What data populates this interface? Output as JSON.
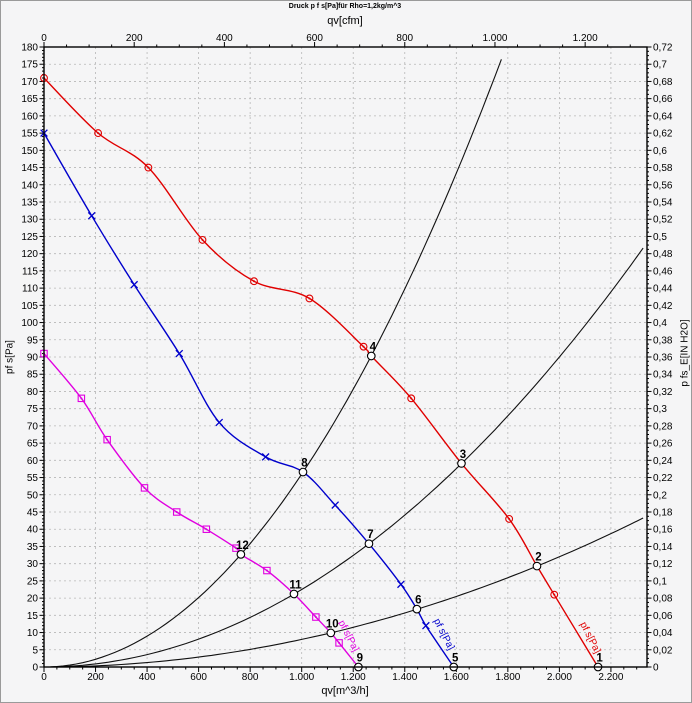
{
  "page_title": "Druck p f s[Pa]für Rho=1,2kg/m^3",
  "chart_data": {
    "type": "line",
    "title": "Druck p f s[Pa]für Rho=1,2kg/m^3",
    "number_format": "de",
    "axes": {
      "bottom": {
        "label": "qv[m^3/h]",
        "min": 0,
        "max": 2340,
        "tick_step": 200,
        "minor_step": 50,
        "last_label": 2200
      },
      "top": {
        "label": "qv[cfm]",
        "min": 0,
        "max": 1337,
        "tick_step": 200,
        "minor_step": 50,
        "last_label": 1200,
        "unit_ratio_to_bottom": 1.75
      },
      "left": {
        "label": "pf s[Pa]",
        "min": 0,
        "max": 180,
        "tick_step": 5,
        "minor_step": 1
      },
      "right": {
        "label": "p fs_E[IN H2O]",
        "min": 0,
        "max": 0.72,
        "tick_step": 0.02,
        "minor_step": 0.005
      }
    },
    "grid": {
      "x_step": 200,
      "y_step": 5,
      "color": "#b7b7b7",
      "dash": "2 3"
    },
    "series": [
      {
        "name": "fan-curve-high",
        "color": "#e00000",
        "marker": "circle-dot",
        "curve_label": {
          "text": "pf s[Pa]",
          "qv": 2080,
          "pa": 12.5,
          "rotate": 63
        },
        "points": [
          [
            0,
            171
          ],
          [
            210,
            155
          ],
          [
            405,
            145
          ],
          [
            615,
            124
          ],
          [
            815,
            112
          ],
          [
            1030,
            107
          ],
          [
            1240,
            93
          ],
          [
            1270,
            90.3
          ],
          [
            1425,
            78
          ],
          [
            1620,
            59.1
          ],
          [
            1805,
            43
          ],
          [
            1913,
            29.3
          ],
          [
            1980,
            21
          ],
          [
            2150,
            0
          ]
        ],
        "markers": [
          [
            0,
            171
          ],
          [
            210,
            155
          ],
          [
            405,
            145
          ],
          [
            615,
            124
          ],
          [
            815,
            112
          ],
          [
            1030,
            107
          ],
          [
            1240,
            93
          ],
          [
            1425,
            78
          ],
          [
            1805,
            43
          ],
          [
            1980,
            21
          ]
        ]
      },
      {
        "name": "fan-curve-mid",
        "color": "#0000cc",
        "marker": "cross",
        "curve_label": {
          "text": "pf s[Pa]",
          "qv": 1512,
          "pa": 13.5,
          "rotate": 63
        },
        "points": [
          [
            0,
            155
          ],
          [
            185,
            131
          ],
          [
            350,
            111
          ],
          [
            525,
            91
          ],
          [
            680,
            71
          ],
          [
            860,
            61
          ],
          [
            1005,
            56.6
          ],
          [
            1130,
            47
          ],
          [
            1261,
            35.8
          ],
          [
            1385,
            24
          ],
          [
            1447,
            16.8
          ],
          [
            1482,
            12
          ],
          [
            1590,
            0
          ]
        ],
        "markers": [
          [
            0,
            155
          ],
          [
            185,
            131
          ],
          [
            350,
            111
          ],
          [
            525,
            91
          ],
          [
            680,
            71
          ],
          [
            860,
            61
          ],
          [
            1130,
            47
          ],
          [
            1385,
            24
          ],
          [
            1482,
            12
          ]
        ]
      },
      {
        "name": "fan-curve-low",
        "color": "#e000e0",
        "marker": "square-dot",
        "curve_label": {
          "text": "pf s[Pa]",
          "qv": 1142,
          "pa": 13,
          "rotate": 63
        },
        "points": [
          [
            0,
            91
          ],
          [
            145,
            78
          ],
          [
            245,
            66
          ],
          [
            390,
            52
          ],
          [
            515,
            45
          ],
          [
            630,
            40
          ],
          [
            745,
            34.5
          ],
          [
            764,
            32.7
          ],
          [
            865,
            28
          ],
          [
            970,
            21.2
          ],
          [
            1055,
            14.5
          ],
          [
            1113,
            9.9
          ],
          [
            1145,
            7
          ],
          [
            1220,
            0
          ]
        ],
        "markers": [
          [
            0,
            91
          ],
          [
            145,
            78
          ],
          [
            245,
            66
          ],
          [
            390,
            52
          ],
          [
            515,
            45
          ],
          [
            630,
            40
          ],
          [
            745,
            34.5
          ],
          [
            865,
            28
          ],
          [
            1055,
            14.5
          ],
          [
            1145,
            7
          ]
        ]
      }
    ],
    "system_curves": [
      {
        "name": "system-curve-steep",
        "k": 5.6e-05,
        "qv_end": 1775,
        "color": "#111111"
      },
      {
        "name": "system-curve-mid",
        "k": 2.25e-05,
        "qv_end": 2340,
        "color": "#111111"
      },
      {
        "name": "system-curve-shallow",
        "k": 8e-06,
        "qv_end": 2340,
        "color": "#111111"
      }
    ],
    "operating_points": [
      {
        "n": "1",
        "qv": 2150,
        "pa": 0
      },
      {
        "n": "2",
        "qv": 1913,
        "pa": 29.3
      },
      {
        "n": "3",
        "qv": 1620,
        "pa": 59.1
      },
      {
        "n": "4",
        "qv": 1270,
        "pa": 90.3
      },
      {
        "n": "5",
        "qv": 1590,
        "pa": 0
      },
      {
        "n": "6",
        "qv": 1447,
        "pa": 16.8
      },
      {
        "n": "7",
        "qv": 1261,
        "pa": 35.8
      },
      {
        "n": "8",
        "qv": 1005,
        "pa": 56.6
      },
      {
        "n": "9",
        "qv": 1220,
        "pa": 0
      },
      {
        "n": "10",
        "qv": 1113,
        "pa": 9.9
      },
      {
        "n": "11",
        "qv": 970,
        "pa": 21.2
      },
      {
        "n": "12",
        "qv": 764,
        "pa": 32.7
      }
    ]
  }
}
